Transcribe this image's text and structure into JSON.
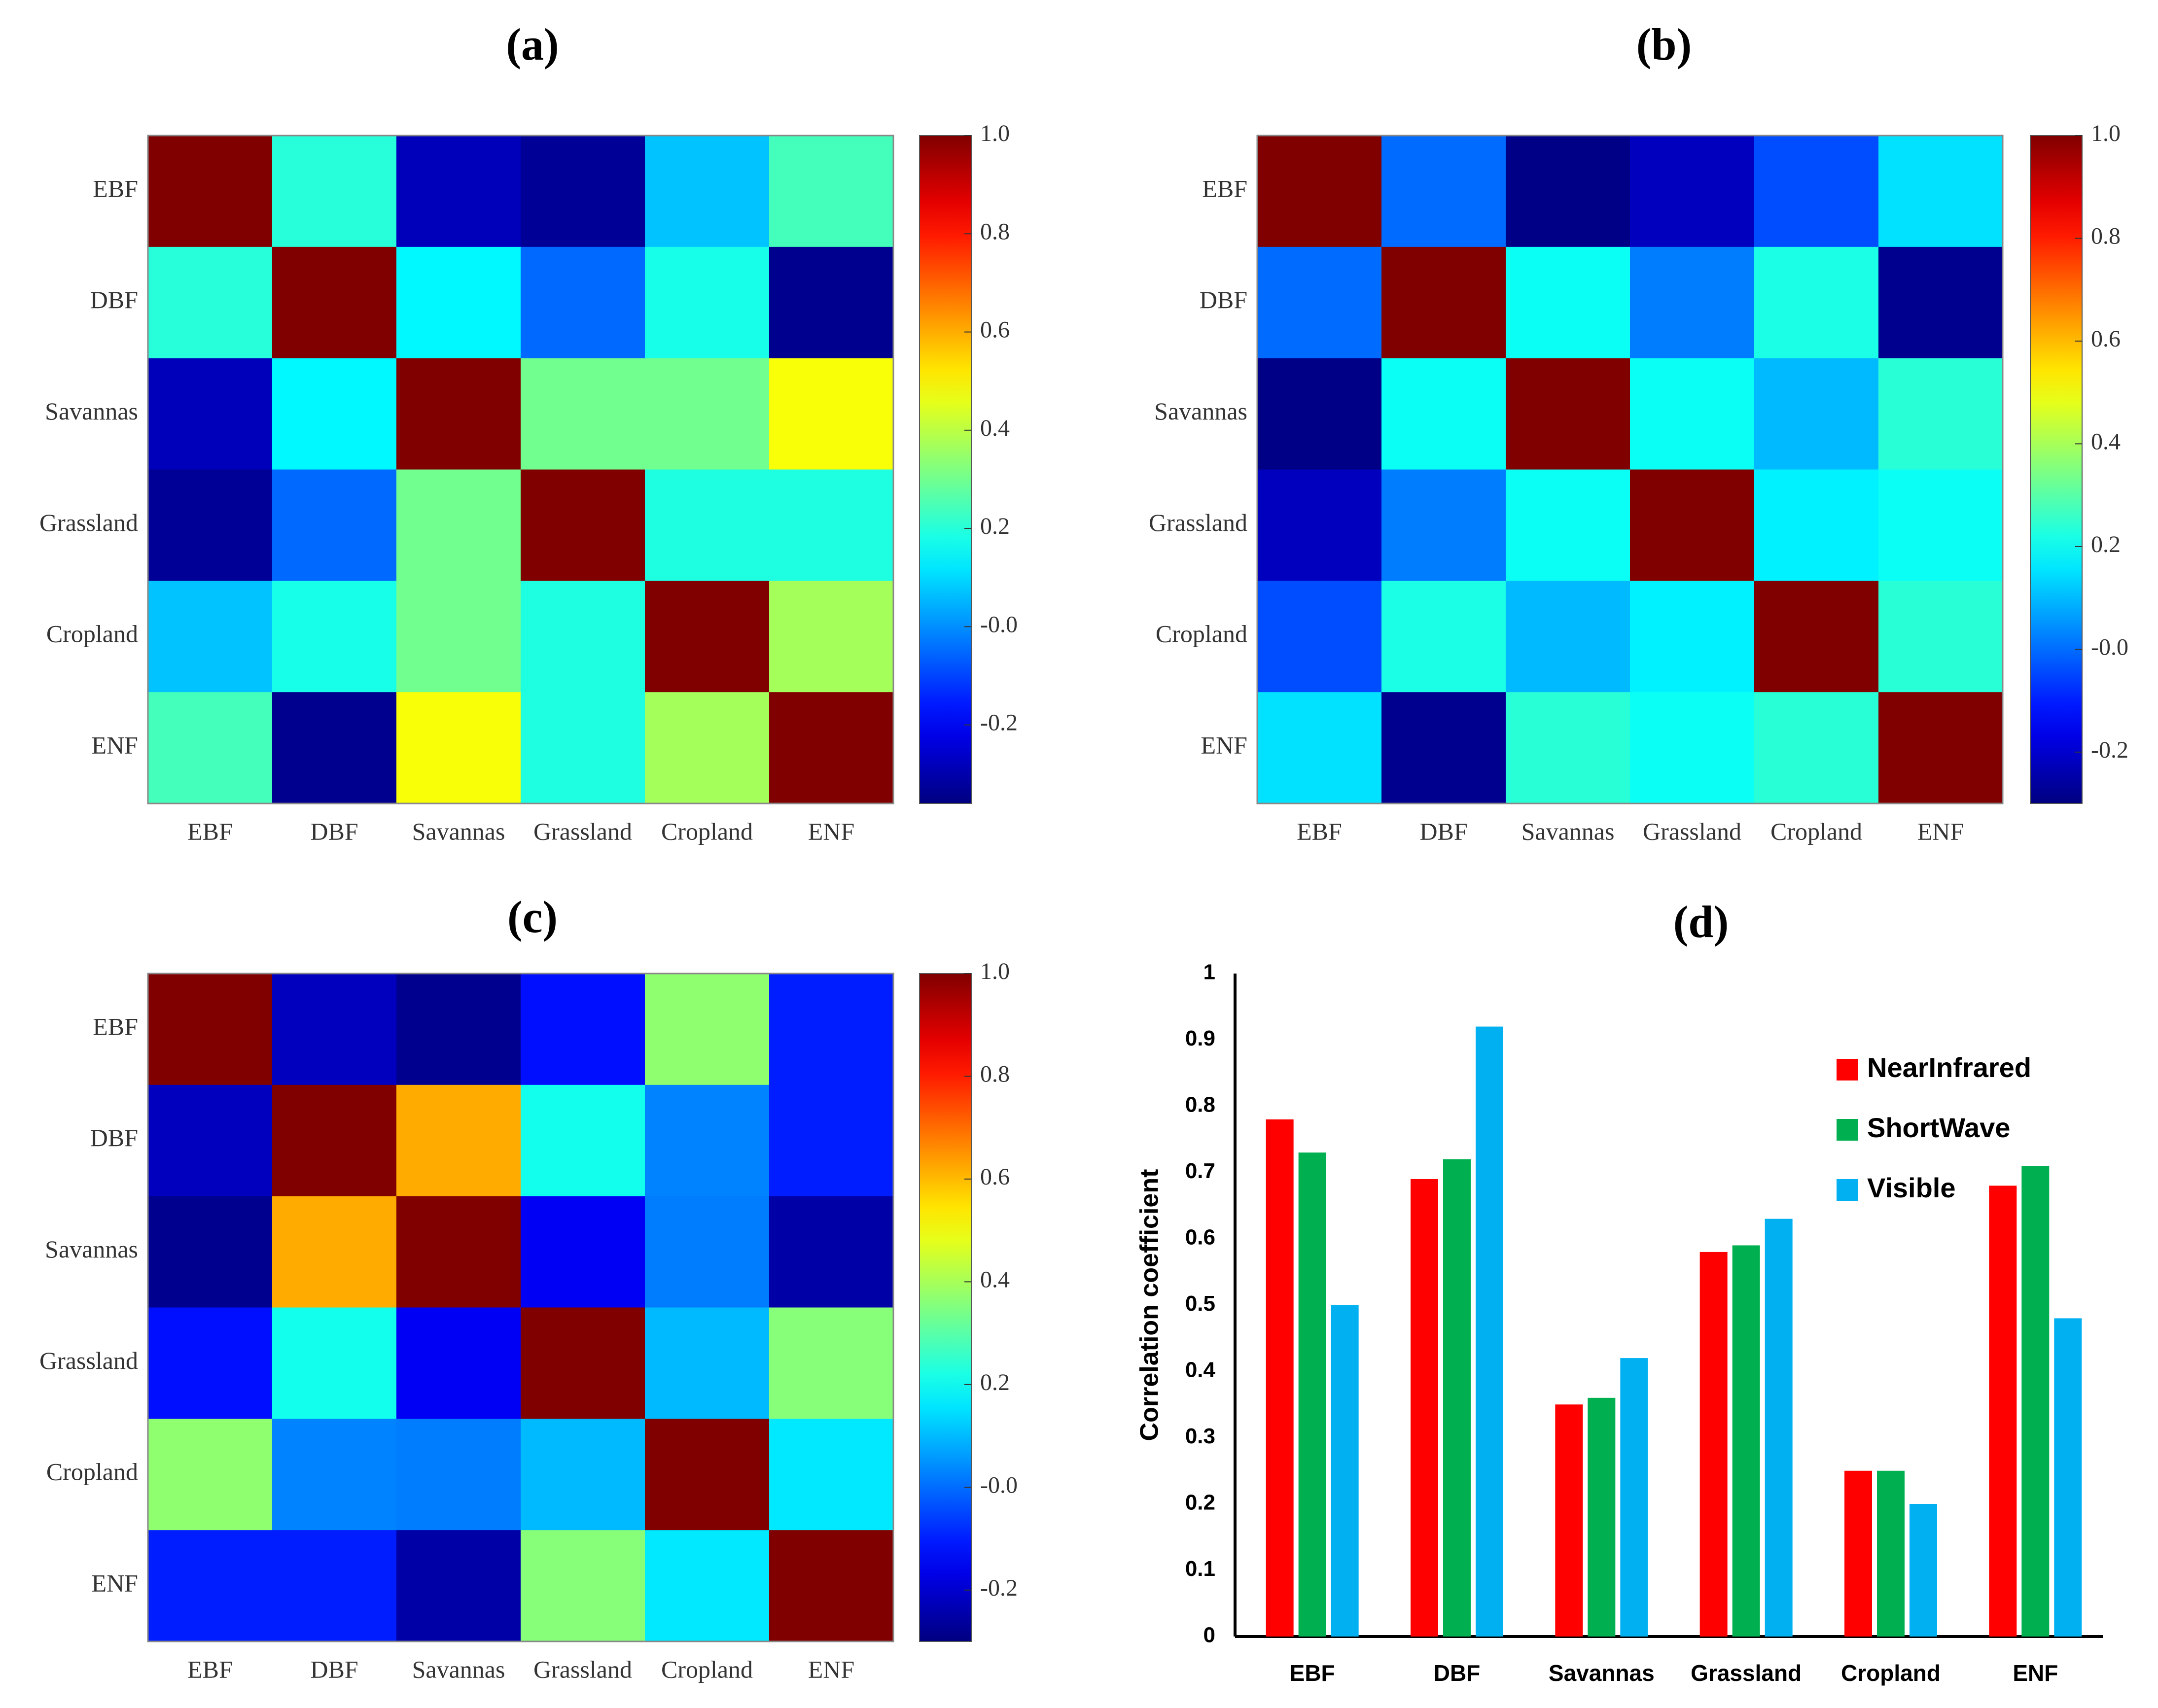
{
  "chart_data": [
    {
      "panel": "(a)",
      "type": "heatmap",
      "title": "(a)",
      "row_labels": [
        "EBF",
        "DBF",
        "Savannas",
        "Grassland",
        "Cropland",
        "ENF"
      ],
      "col_labels": [
        "EBF",
        "DBF",
        "Savannas",
        "Grassland",
        "Cropland",
        "ENF"
      ],
      "values": [
        [
          1.0,
          0.2,
          -0.28,
          -0.33,
          0.07,
          0.24
        ],
        [
          0.2,
          1.0,
          0.14,
          -0.05,
          0.18,
          -0.34
        ],
        [
          -0.28,
          0.14,
          1.0,
          0.3,
          0.3,
          0.48
        ],
        [
          -0.33,
          -0.05,
          0.3,
          1.0,
          0.19,
          0.19
        ],
        [
          0.07,
          0.18,
          0.3,
          0.19,
          1.0,
          0.37
        ],
        [
          0.24,
          -0.34,
          0.48,
          0.19,
          0.37,
          1.0
        ]
      ],
      "vmin": -0.36,
      "vmax": 1.0,
      "colorbar_ticks": [
        "1.0",
        "0.8",
        "0.6",
        "0.4",
        "0.2",
        "-0.0",
        "-0.2"
      ],
      "colorbar_tick_values": [
        1.0,
        0.8,
        0.6,
        0.4,
        0.2,
        0.0,
        -0.2
      ]
    },
    {
      "panel": "(b)",
      "type": "heatmap",
      "title": "(b)",
      "row_labels": [
        "EBF",
        "DBF",
        "Savannas",
        "Grassland",
        "Cropland",
        "ENF"
      ],
      "col_labels": [
        "EBF",
        "DBF",
        "Savannas",
        "Grassland",
        "Cropland",
        "ENF"
      ],
      "values": [
        [
          1.0,
          0.0,
          -0.29,
          -0.22,
          -0.04,
          0.15
        ],
        [
          0.0,
          1.0,
          0.2,
          0.02,
          0.22,
          -0.28
        ],
        [
          -0.29,
          0.2,
          1.0,
          0.2,
          0.1,
          0.24
        ],
        [
          -0.22,
          0.02,
          0.2,
          1.0,
          0.17,
          0.2
        ],
        [
          -0.04,
          0.22,
          0.1,
          0.17,
          1.0,
          0.24
        ],
        [
          0.15,
          -0.28,
          0.24,
          0.2,
          0.24,
          1.0
        ]
      ],
      "vmin": -0.3,
      "vmax": 1.0,
      "colorbar_ticks": [
        "1.0",
        "0.8",
        "0.6",
        "0.4",
        "0.2",
        "-0.0",
        "-0.2"
      ],
      "colorbar_tick_values": [
        1.0,
        0.8,
        0.6,
        0.4,
        0.2,
        0.0,
        -0.2
      ]
    },
    {
      "panel": "(c)",
      "type": "heatmap",
      "title": "(c)",
      "row_labels": [
        "EBF",
        "DBF",
        "Savannas",
        "Grassland",
        "Cropland",
        "ENF"
      ],
      "col_labels": [
        "EBF",
        "DBF",
        "Savannas",
        "Grassland",
        "Cropland",
        "ENF"
      ],
      "values": [
        [
          1.0,
          -0.22,
          -0.28,
          -0.12,
          0.37,
          -0.1
        ],
        [
          -0.22,
          1.0,
          0.62,
          0.21,
          0.03,
          -0.1
        ],
        [
          -0.28,
          0.62,
          1.0,
          -0.15,
          0.02,
          -0.25
        ],
        [
          -0.12,
          0.21,
          -0.15,
          1.0,
          0.1,
          0.36
        ],
        [
          0.37,
          0.03,
          0.02,
          0.1,
          1.0,
          0.16
        ],
        [
          -0.1,
          -0.1,
          -0.25,
          0.36,
          0.16,
          1.0
        ]
      ],
      "vmin": -0.3,
      "vmax": 1.0,
      "colorbar_ticks": [
        "1.0",
        "0.8",
        "0.6",
        "0.4",
        "0.2",
        "-0.0",
        "-0.2"
      ],
      "colorbar_tick_values": [
        1.0,
        0.8,
        0.6,
        0.4,
        0.2,
        0.0,
        -0.2
      ]
    },
    {
      "panel": "(d)",
      "type": "bar",
      "title": "(d)",
      "ylabel": "Correlation coefficient",
      "xlabel": "",
      "categories": [
        "EBF",
        "DBF",
        "Savannas",
        "Grassland",
        "Cropland",
        "ENF"
      ],
      "ylim": [
        0,
        1
      ],
      "yticks": [
        "0",
        "0.1",
        "0.2",
        "0.3",
        "0.4",
        "0.5",
        "0.6",
        "0.7",
        "0.8",
        "0.9",
        "1"
      ],
      "ytick_values": [
        0,
        0.1,
        0.2,
        0.3,
        0.4,
        0.5,
        0.6,
        0.7,
        0.8,
        0.9,
        1
      ],
      "legend_position": "top-right",
      "series": [
        {
          "name": "NearInfrared",
          "color": "#ff0000",
          "values": [
            0.78,
            0.69,
            0.35,
            0.58,
            0.25,
            0.68
          ]
        },
        {
          "name": "ShortWave",
          "color": "#00b050",
          "values": [
            0.73,
            0.72,
            0.36,
            0.59,
            0.25,
            0.71
          ]
        },
        {
          "name": "Visible",
          "color": "#00b0f0",
          "values": [
            0.5,
            0.92,
            0.42,
            0.63,
            0.2,
            0.48
          ]
        }
      ]
    }
  ]
}
